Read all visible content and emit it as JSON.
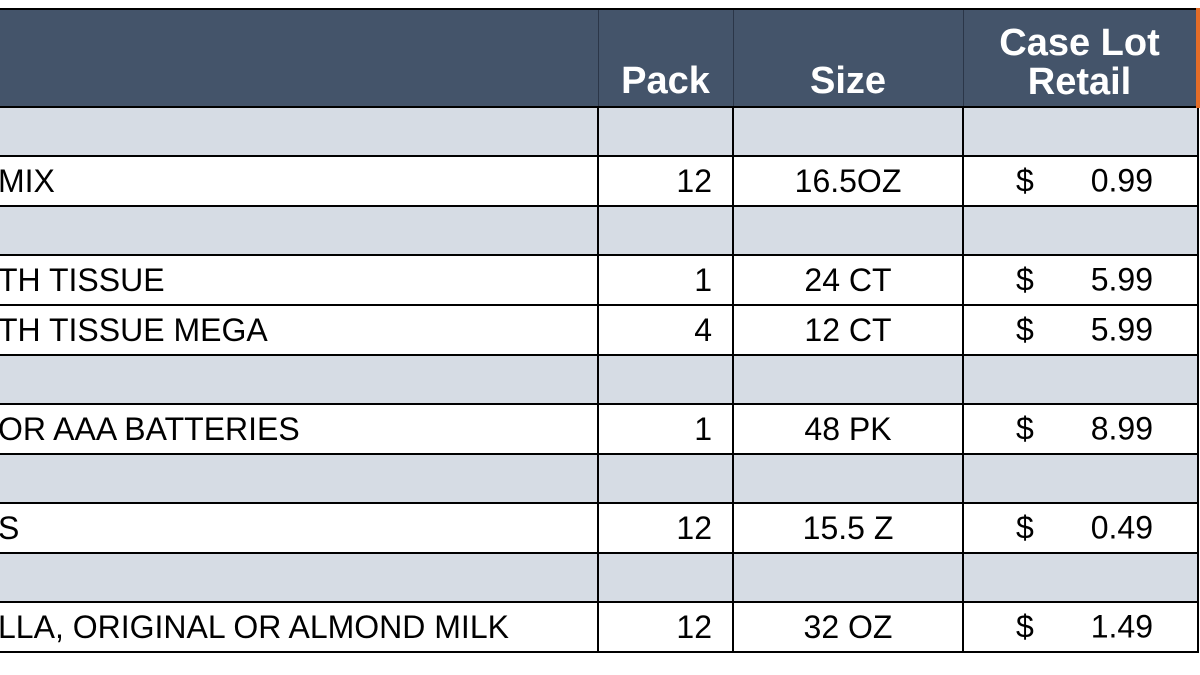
{
  "header": {
    "pack": "Pack",
    "size": "Size",
    "retail_line1": "Case Lot",
    "retail_line2": "Retail"
  },
  "rows": [
    {
      "type": "band"
    },
    {
      "type": "item",
      "description": " MIX",
      "pack": "12",
      "size": "16.5OZ",
      "currency": "$",
      "price": "0.99"
    },
    {
      "type": "band"
    },
    {
      "type": "item",
      "description": "TH TISSUE",
      "pack": "1",
      "size": "24 CT",
      "currency": "$",
      "price": "5.99"
    },
    {
      "type": "item",
      "description": "TH TISSUE MEGA",
      "pack": "4",
      "size": "12 CT",
      "currency": "$",
      "price": "5.99"
    },
    {
      "type": "band"
    },
    {
      "type": "item",
      "description": "OR AAA BATTERIES",
      "pack": "1",
      "size": "48 PK",
      "currency": "$",
      "price": "8.99"
    },
    {
      "type": "band"
    },
    {
      "type": "item",
      "description": "S",
      "pack": "12",
      "size": "15.5 Z",
      "currency": "$",
      "price": "0.49"
    },
    {
      "type": "band"
    },
    {
      "type": "item",
      "description": "LLA, ORIGINAL OR ALMOND MILK",
      "pack": "12",
      "size": "32 OZ",
      "currency": "$",
      "price": "1.49"
    }
  ],
  "colors": {
    "header_bg": "#44546a",
    "band_bg": "#d6dce4",
    "accent": "#e36c27"
  }
}
